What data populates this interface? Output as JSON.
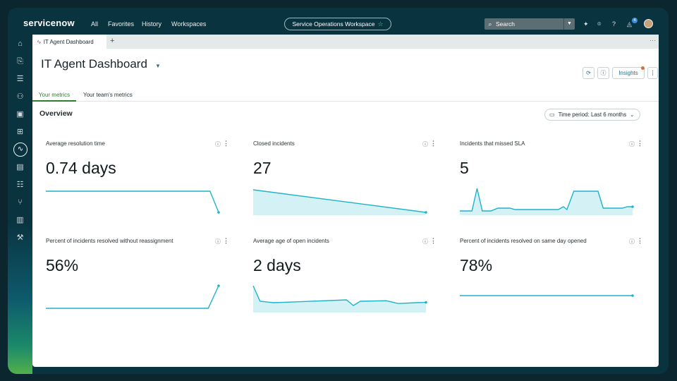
{
  "topbar": {
    "logo": "servicenow",
    "nav": [
      "All",
      "Favorites",
      "History",
      "Workspaces"
    ],
    "workspace": "Service Operations Workspace",
    "search_placeholder": "Search",
    "notification_count": "4"
  },
  "tabs": {
    "active_tab": "IT Agent Dashboard",
    "add_label": "+",
    "more_label": "···"
  },
  "header": {
    "title": "IT Agent Dashboard",
    "insights_label": "Insights"
  },
  "subtabs": [
    "Your metrics",
    "Your team's metrics"
  ],
  "overview": {
    "title": "Overview",
    "period_label": "Time period: Last 6 months"
  },
  "colors": {
    "accent": "#1fb3c9",
    "brand_green": "#2e7d32",
    "rail_bg": "#0a3340"
  },
  "cards": [
    {
      "title": "Average resolution time",
      "value": "0.74 days",
      "spark": {
        "area": false,
        "points": [
          [
            0,
            0.15
          ],
          [
            0.95,
            0.15
          ],
          [
            1,
            0.9
          ]
        ]
      }
    },
    {
      "title": "Closed incidents",
      "value": "27",
      "spark": {
        "area": true,
        "points": [
          [
            0,
            0.1
          ],
          [
            1,
            0.9
          ]
        ]
      }
    },
    {
      "title": "Incidents that missed SLA",
      "value": "5",
      "spark": {
        "area": true,
        "points": [
          [
            0,
            0.85
          ],
          [
            0.07,
            0.85
          ],
          [
            0.1,
            0.05
          ],
          [
            0.13,
            0.85
          ],
          [
            0.18,
            0.85
          ],
          [
            0.22,
            0.75
          ],
          [
            0.29,
            0.75
          ],
          [
            0.32,
            0.8
          ],
          [
            0.57,
            0.8
          ],
          [
            0.6,
            0.7
          ],
          [
            0.62,
            0.8
          ],
          [
            0.66,
            0.15
          ],
          [
            0.8,
            0.15
          ],
          [
            0.83,
            0.75
          ],
          [
            0.94,
            0.75
          ],
          [
            0.97,
            0.7
          ],
          [
            1,
            0.7
          ]
        ]
      }
    },
    {
      "title": "Percent of incidents resolved without reassignment",
      "value": "56%",
      "spark": {
        "area": false,
        "points": [
          [
            0,
            0.85
          ],
          [
            0.94,
            0.85
          ],
          [
            1,
            0.05
          ]
        ]
      }
    },
    {
      "title": "Average age of open incidents",
      "value": "2 days",
      "spark": {
        "area": true,
        "points": [
          [
            0,
            0.05
          ],
          [
            0.04,
            0.6
          ],
          [
            0.12,
            0.65
          ],
          [
            0.25,
            0.62
          ],
          [
            0.54,
            0.55
          ],
          [
            0.58,
            0.75
          ],
          [
            0.62,
            0.6
          ],
          [
            0.77,
            0.58
          ],
          [
            0.84,
            0.68
          ],
          [
            0.94,
            0.65
          ],
          [
            1,
            0.64
          ]
        ]
      }
    },
    {
      "title": "Percent of incidents resolved on same day opened",
      "value": "78%",
      "spark": {
        "area": false,
        "points": [
          [
            0,
            0.4
          ],
          [
            1,
            0.4
          ]
        ]
      }
    }
  ]
}
